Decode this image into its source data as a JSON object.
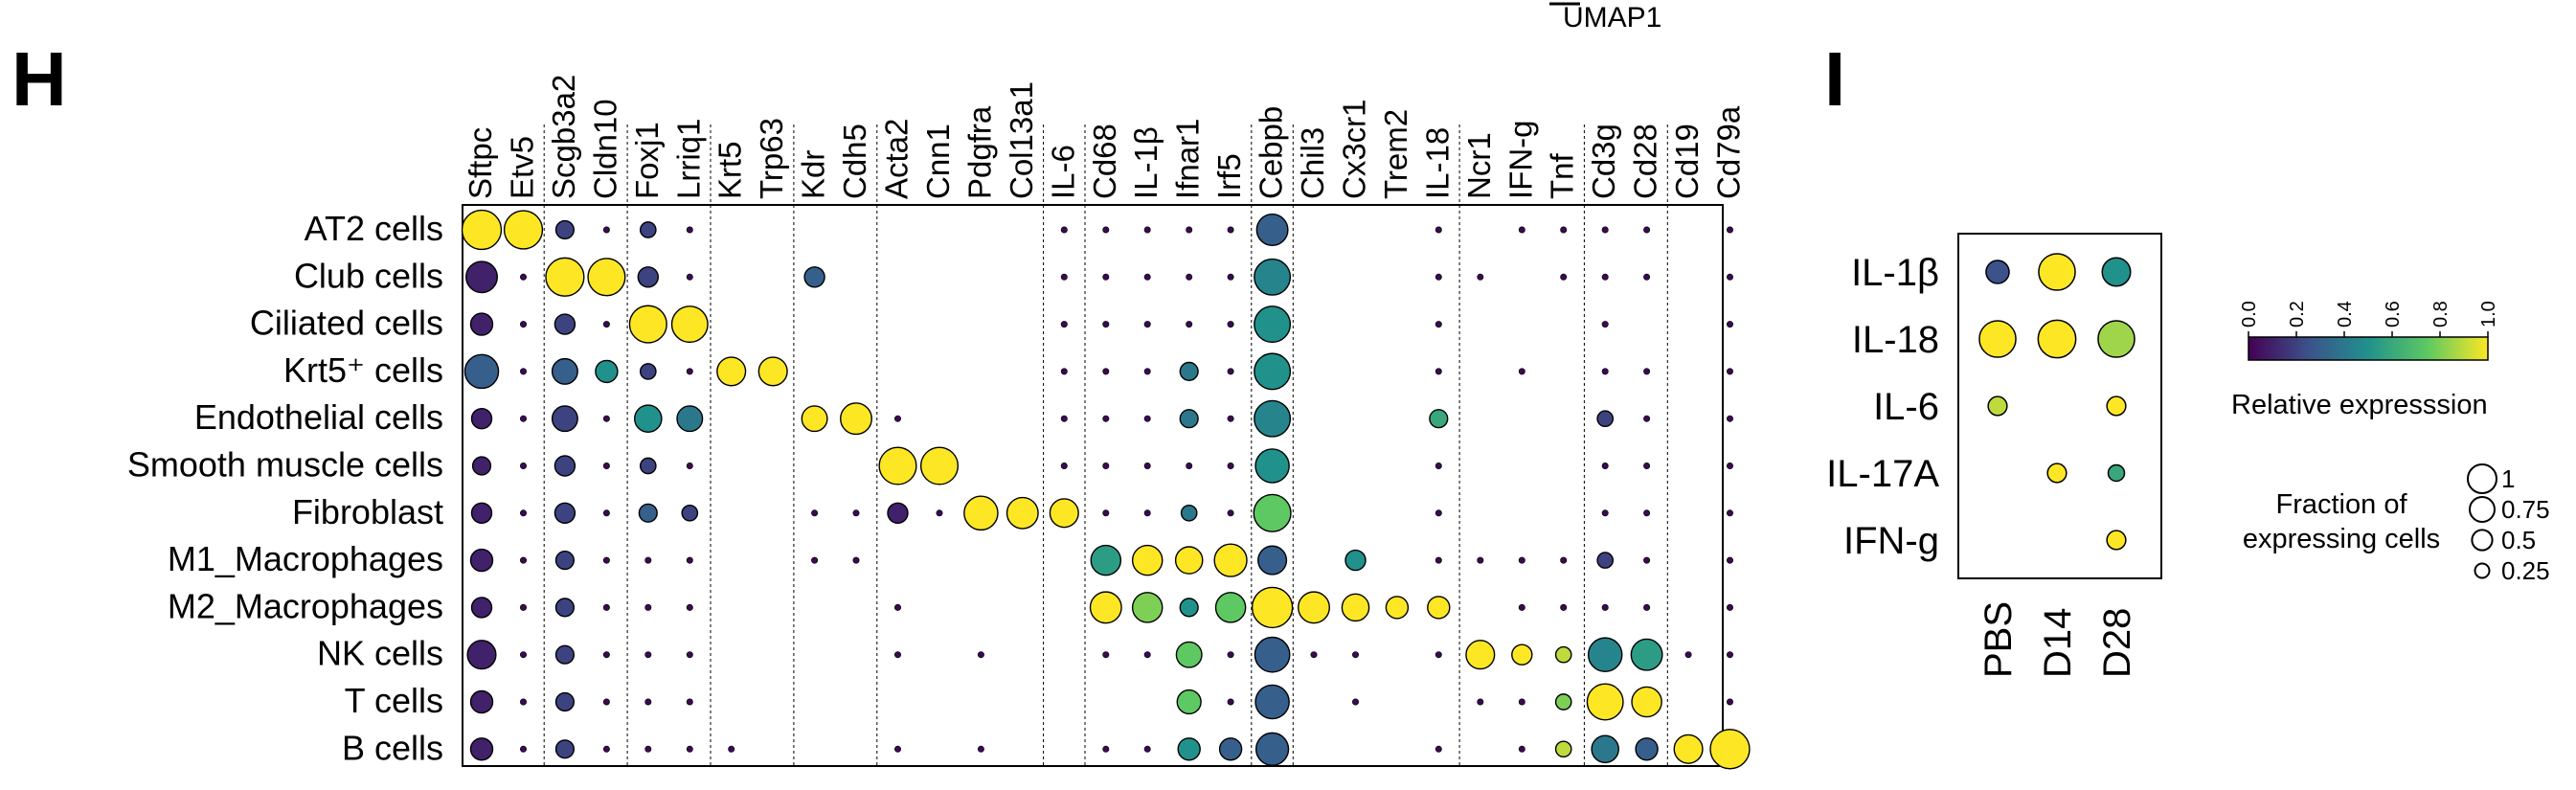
{
  "top_label": "UMAP1",
  "panel_h": {
    "letter": "H"
  },
  "panel_i": {
    "letter": "I"
  },
  "colorbar": {
    "title": "Relative expresssion",
    "ticks": [
      "0.0",
      "0.2",
      "0.4",
      "0.6",
      "0.8",
      "1.0"
    ],
    "colormap": [
      "#440154",
      "#3b528b",
      "#21918c",
      "#5ec962",
      "#fde725"
    ]
  },
  "size_legend": {
    "title_line1": "Fraction of",
    "title_line2": "expressing cells",
    "entries": [
      "1",
      "0.75",
      "0.5",
      "0.25"
    ]
  },
  "chart_data": [
    {
      "type": "dotplot",
      "panel": "H",
      "genes": [
        "Sftpc",
        "Etv5",
        "Scgb3a2",
        "Cldn10",
        "Foxj1",
        "Lrriq1",
        "Krt5",
        "Trp63",
        "Kdr",
        "Cdh5",
        "Acta2",
        "Cnn1",
        "Pdgfra",
        "Col13a1",
        "IL-6",
        "Cd68",
        "IL-1β",
        "Ifnar1",
        "Irf5",
        "Cebpb",
        "Chil3",
        "Cx3cr1",
        "Trem2",
        "IL-18",
        "Ncr1",
        "IFN-g",
        "Tnf",
        "Cd3g",
        "Cd28",
        "Cd19",
        "Cd79a"
      ],
      "cell_types": [
        "AT2 cells",
        "Club cells",
        "Ciliated cells",
        "Krt5⁺ cells",
        "Endothelial cells",
        "Smooth muscle cells",
        "Fibroblast",
        "M1_Macrophages",
        "M2_Macrophages",
        "NK cells",
        "T cells",
        "B cells"
      ],
      "gene_group_sizes": [
        2,
        2,
        2,
        2,
        2,
        4,
        1,
        4,
        1,
        4,
        3,
        2,
        2
      ],
      "size_scale": "fraction of expressing cells (0-1)",
      "color_scale": "relative expression (0-1)",
      "fraction": [
        [
          0.95,
          0.9,
          0.2,
          0.1,
          0.15,
          0.1,
          0,
          0,
          0,
          0,
          0,
          0,
          0,
          0,
          0.1,
          0.1,
          0.1,
          0.1,
          0.1,
          0.6,
          0,
          0,
          0,
          0.1,
          0,
          0.05,
          0.08,
          0.12,
          0.08,
          0,
          0.08
        ],
        [
          0.6,
          0.1,
          0.9,
          0.85,
          0.25,
          0.12,
          0,
          0,
          0.25,
          0,
          0,
          0,
          0,
          0,
          0.05,
          0.08,
          0.08,
          0.1,
          0.1,
          0.8,
          0,
          0,
          0,
          0.08,
          0.05,
          0,
          0.08,
          0.12,
          0.08,
          0,
          0.08
        ],
        [
          0.3,
          0.1,
          0.25,
          0.1,
          0.85,
          0.8,
          0,
          0,
          0,
          0,
          0,
          0,
          0,
          0,
          0.05,
          0.05,
          0.05,
          0.1,
          0.08,
          0.8,
          0,
          0,
          0,
          0.1,
          0,
          0,
          0,
          0.05,
          0,
          0,
          0.05
        ],
        [
          0.7,
          0.12,
          0.4,
          0.3,
          0.15,
          0.12,
          0.5,
          0.5,
          0,
          0,
          0,
          0,
          0,
          0,
          0.1,
          0.05,
          0.05,
          0.2,
          0.12,
          0.8,
          0,
          0,
          0,
          0.05,
          0,
          0.05,
          0,
          0.12,
          0.12,
          0,
          0.1
        ],
        [
          0.25,
          0.05,
          0.4,
          0.05,
          0.45,
          0.4,
          0,
          0,
          0.4,
          0.6,
          0.05,
          0,
          0,
          0,
          0.08,
          0.05,
          0.05,
          0.2,
          0.08,
          0.8,
          0,
          0,
          0,
          0.2,
          0,
          0,
          0,
          0.15,
          0.1,
          0,
          0.1
        ],
        [
          0.2,
          0.1,
          0.25,
          0.05,
          0.15,
          0.1,
          0,
          0,
          0,
          0,
          0.85,
          0.85,
          0,
          0,
          0.05,
          0.05,
          0.05,
          0.1,
          0.05,
          0.7,
          0,
          0,
          0,
          0.05,
          0,
          0,
          0,
          0.12,
          0.08,
          0,
          0.08
        ],
        [
          0.25,
          0.05,
          0.25,
          0.08,
          0.2,
          0.15,
          0,
          0,
          0.1,
          0.08,
          0.25,
          0.1,
          0.7,
          0.6,
          0.5,
          0.05,
          0.05,
          0.15,
          0.08,
          0.85,
          0,
          0,
          0,
          0.05,
          0,
          0,
          0,
          0.12,
          0.08,
          0,
          0.08
        ],
        [
          0.3,
          0.05,
          0.2,
          0.05,
          0.1,
          0.05,
          0,
          0,
          0.05,
          0.1,
          0,
          0,
          0,
          0,
          0,
          0.55,
          0.55,
          0.45,
          0.65,
          0.5,
          0,
          0.25,
          0,
          0.05,
          0.05,
          0.05,
          0.12,
          0.15,
          0.08,
          0,
          0.08
        ],
        [
          0.25,
          0.05,
          0.2,
          0.05,
          0.12,
          0.08,
          0,
          0,
          0,
          0,
          0.05,
          0,
          0,
          0,
          0,
          0.6,
          0.55,
          0.2,
          0.55,
          1.0,
          0.6,
          0.45,
          0.3,
          0.3,
          0,
          0.05,
          0.12,
          0.12,
          0.08,
          0,
          0.08
        ],
        [
          0.5,
          0.05,
          0.2,
          0.05,
          0.1,
          0.05,
          0,
          0,
          0,
          0,
          0.05,
          0,
          0.05,
          0,
          0,
          0.05,
          0.05,
          0.4,
          0.1,
          0.75,
          0.05,
          0.05,
          0,
          0.05,
          0.5,
          0.25,
          0.15,
          0.7,
          0.6,
          0.08,
          0.1
        ],
        [
          0.3,
          0.05,
          0.2,
          0.05,
          0.1,
          0.05,
          0,
          0,
          0,
          0,
          0,
          0,
          0,
          0,
          0,
          0,
          0,
          0.35,
          0.1,
          0.7,
          0,
          0.05,
          0,
          0,
          0.05,
          0.08,
          0.15,
          0.8,
          0.55,
          0,
          0.08
        ],
        [
          0.3,
          0.05,
          0.2,
          0.05,
          0.12,
          0.08,
          0.05,
          0,
          0,
          0,
          0.05,
          0,
          0.05,
          0,
          0,
          0.1,
          0.1,
          0.3,
          0.3,
          0.65,
          0,
          0,
          0,
          0.05,
          0,
          0.05,
          0.15,
          0.45,
          0.3,
          0.5,
          0.95
        ]
      ],
      "expression": [
        [
          1.0,
          1.0,
          0.2,
          0.1,
          0.2,
          0.1,
          0,
          0,
          0,
          0,
          0,
          0,
          0,
          0,
          0.2,
          0.1,
          0.1,
          0.2,
          0.1,
          0.3,
          0,
          0,
          0,
          0.2,
          0,
          0.2,
          0.2,
          0.2,
          0.2,
          0,
          0.1
        ],
        [
          0.1,
          0.1,
          1.0,
          1.0,
          0.2,
          0.1,
          0,
          0,
          0.3,
          0,
          0,
          0,
          0,
          0,
          0.1,
          0.1,
          0.1,
          0.2,
          0.1,
          0.45,
          0,
          0,
          0,
          0.1,
          0.1,
          0,
          0.1,
          0.2,
          0.1,
          0,
          0.1
        ],
        [
          0.1,
          0.1,
          0.2,
          0.1,
          1.0,
          1.0,
          0,
          0,
          0,
          0,
          0,
          0,
          0,
          0,
          0.1,
          0.1,
          0.1,
          0.2,
          0.1,
          0.5,
          0,
          0,
          0,
          0.5,
          0,
          0,
          0,
          0.1,
          0,
          0,
          0.1
        ],
        [
          0.3,
          0.1,
          0.3,
          0.5,
          0.2,
          0.1,
          1.0,
          1.0,
          0,
          0,
          0,
          0,
          0,
          0,
          0.1,
          0.1,
          0.1,
          0.4,
          0.1,
          0.5,
          0,
          0,
          0,
          0.1,
          0,
          0.1,
          0,
          0.2,
          0.1,
          0,
          0.1
        ],
        [
          0.1,
          0.1,
          0.2,
          0.1,
          0.5,
          0.4,
          0,
          0,
          1.0,
          1.0,
          0.1,
          0,
          0,
          0,
          0.1,
          0.1,
          0.1,
          0.4,
          0.1,
          0.45,
          0,
          0,
          0,
          0.6,
          0,
          0,
          0,
          0.2,
          0.1,
          0,
          0.1
        ],
        [
          0.1,
          0.1,
          0.2,
          0.1,
          0.2,
          0.1,
          0,
          0,
          0,
          0,
          1.0,
          1.0,
          0,
          0,
          0.1,
          0.1,
          0.1,
          0.2,
          0.1,
          0.5,
          0,
          0,
          0,
          0.1,
          0,
          0,
          0,
          0.2,
          0.1,
          0,
          0.1
        ],
        [
          0.1,
          0.1,
          0.2,
          0.1,
          0.3,
          0.2,
          0,
          0,
          0.2,
          0.1,
          0.1,
          0.1,
          1.0,
          1.0,
          1.0,
          0.1,
          0.1,
          0.4,
          0.1,
          0.75,
          0,
          0,
          0,
          0.3,
          0,
          0,
          0,
          0.2,
          0.1,
          0,
          0.1
        ],
        [
          0.1,
          0.1,
          0.2,
          0.1,
          0.2,
          0.1,
          0,
          0,
          0.1,
          0.1,
          0,
          0,
          0,
          0,
          0,
          0.55,
          1.0,
          1.0,
          1.0,
          0.3,
          0,
          0.5,
          0,
          0.2,
          0.1,
          0.1,
          0.7,
          0.2,
          0.1,
          0,
          0.1
        ],
        [
          0.1,
          0.1,
          0.2,
          0.1,
          0.2,
          0.1,
          0,
          0,
          0,
          0,
          0.1,
          0,
          0,
          0,
          0,
          1.0,
          0.8,
          0.5,
          0.75,
          1.0,
          1.0,
          1.0,
          1.0,
          1.0,
          0,
          0.1,
          0.1,
          0.2,
          0.1,
          0,
          0.1
        ],
        [
          0.1,
          0.1,
          0.2,
          0.1,
          0.2,
          0.1,
          0,
          0,
          0,
          0,
          0.1,
          0,
          0.1,
          0,
          0,
          0.1,
          0.1,
          0.75,
          0.1,
          0.3,
          0.1,
          0.1,
          0,
          0.2,
          1.0,
          1.0,
          0.9,
          0.45,
          0.55,
          0.1,
          0.1
        ],
        [
          0.1,
          0.1,
          0.2,
          0.1,
          0.2,
          0.1,
          0,
          0,
          0,
          0,
          0,
          0,
          0,
          0,
          0,
          0,
          0,
          0.75,
          0.1,
          0.3,
          0,
          0.1,
          0,
          0,
          0.1,
          0.3,
          0.8,
          1.0,
          1.0,
          0,
          0.1
        ],
        [
          0.1,
          0.1,
          0.2,
          0.1,
          0.2,
          0.1,
          0.1,
          0,
          0,
          0,
          0.1,
          0,
          0.1,
          0,
          0,
          0.1,
          0.1,
          0.5,
          0.3,
          0.3,
          0,
          0,
          0,
          0.1,
          0,
          0.1,
          0.9,
          0.4,
          0.3,
          1.0,
          1.0
        ]
      ]
    },
    {
      "type": "dotplot",
      "panel": "I",
      "conditions": [
        "PBS",
        "D14",
        "D28"
      ],
      "cytokines": [
        "IL-1β",
        "IL-18",
        "IL-6",
        "IL-17A",
        "IFN-g"
      ],
      "size_scale": "fraction of expressing cells (0-1)",
      "color_scale": "relative expression (0-1)",
      "fraction": [
        [
          0.3,
          0.75,
          0.45
        ],
        [
          0.75,
          0.8,
          0.75
        ],
        [
          0.2,
          0,
          0.2
        ],
        [
          0,
          0.2,
          0.15
        ],
        [
          0,
          0,
          0.2
        ]
      ],
      "expression": [
        [
          0.25,
          1.0,
          0.5
        ],
        [
          1.0,
          1.0,
          0.85
        ],
        [
          0.9,
          0,
          1.0
        ],
        [
          0,
          1.0,
          0.6
        ],
        [
          0,
          0,
          1.0
        ]
      ]
    }
  ]
}
